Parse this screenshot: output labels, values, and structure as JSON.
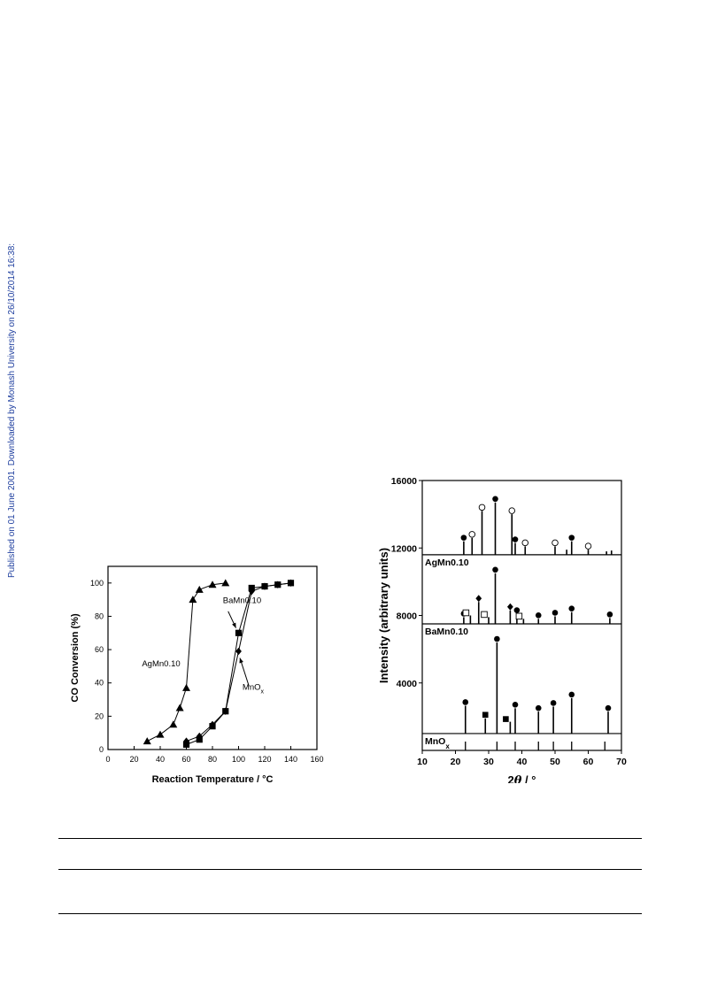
{
  "sidenote": "Published on 01 June 2001. Downloaded by Monash University on 26/10/2014 16:38:37.",
  "sidenote_color": "#1f3f9f",
  "chart_data": [
    {
      "type": "line",
      "xlabel": "Reaction Temperature / °C",
      "ylabel": "CO Conversion (%)",
      "xlim": [
        0,
        160
      ],
      "ylim": [
        0,
        110
      ],
      "xticks": [
        "0",
        "20",
        "40",
        "60",
        "80",
        "100",
        "120",
        "140",
        "160"
      ],
      "yticks": [
        "0",
        "20",
        "40",
        "60",
        "80",
        "100"
      ],
      "grid": false,
      "series": [
        {
          "name": "AgMn0.10",
          "marker": "triangle",
          "x": [
            30,
            40,
            50,
            55,
            60,
            65,
            70,
            80,
            90
          ],
          "y": [
            5,
            9,
            15,
            25,
            37,
            90,
            96,
            99,
            100
          ]
        },
        {
          "name": "BaMn0.10",
          "marker": "square",
          "x": [
            60,
            70,
            80,
            90,
            100,
            110,
            120,
            130,
            140
          ],
          "y": [
            3,
            6,
            14,
            23,
            70,
            97,
            98,
            99,
            100
          ]
        },
        {
          "name": "MnOx",
          "marker": "diamond",
          "x": [
            60,
            70,
            80,
            90,
            100,
            110,
            120,
            130,
            140
          ],
          "y": [
            5,
            8,
            15,
            23,
            59,
            95,
            98,
            99,
            100
          ]
        }
      ],
      "annotations": [
        {
          "text": "AgMn0.10"
        },
        {
          "text": "BaMn0.10"
        },
        {
          "text": "MnO",
          "sub": "x"
        }
      ]
    },
    {
      "type": "bar",
      "subtype": "stacked-stick-diffraction",
      "xlabel_pre": "2",
      "xlabel_theta": "θ",
      "xlabel_post": " / °",
      "ylabel": "Intensity (arbitrary units)",
      "xlim": [
        10,
        70
      ],
      "ylim": [
        0,
        16000
      ],
      "xticks": [
        "10",
        "20",
        "30",
        "40",
        "50",
        "60",
        "70"
      ],
      "yticks": [
        {
          "v": 4000,
          "label": "4000"
        },
        {
          "v": 8000,
          "label": "8000"
        },
        {
          "v": 12000,
          "label": "12000"
        },
        {
          "v": 16000,
          "label": "16000"
        }
      ],
      "panels": [
        {
          "label": "MnO",
          "sub": "x",
          "base": 0,
          "top": 0,
          "sticks": [
            {
              "x": 23.0,
              "h": 0
            },
            {
              "x": 32.5,
              "h": 0
            },
            {
              "x": 38.0,
              "h": 0
            },
            {
              "x": 45.0,
              "h": 0
            },
            {
              "x": 49.5,
              "h": 0
            },
            {
              "x": 55.0,
              "h": 0
            },
            {
              "x": 65.0,
              "h": 0
            }
          ]
        },
        {
          "label": "",
          "base": 1000,
          "top": 7500,
          "sticks": [
            {
              "x": 23.0,
              "h": 1650,
              "m": "filled-circle"
            },
            {
              "x": 32.5,
              "h": 5400,
              "m": "filled-circle"
            },
            {
              "x": 38.0,
              "h": 1500,
              "m": "filled-circle"
            },
            {
              "x": 45.0,
              "h": 1300,
              "m": "filled-circle"
            },
            {
              "x": 49.5,
              "h": 1600,
              "m": "filled-circle"
            },
            {
              "x": 55.0,
              "h": 2100,
              "m": "filled-circle"
            },
            {
              "x": 66.0,
              "h": 1300,
              "m": "filled-circle"
            },
            {
              "x": 29.0,
              "h": 900,
              "m": "filled-square"
            },
            {
              "x": 36.5,
              "h": 700,
              "m": "filled-square"
            }
          ]
        },
        {
          "label": "BaMn0.10",
          "base": 7500,
          "top": 11600,
          "sticks": [
            {
              "x": 22.5,
              "h": 400,
              "m": "filled-circle"
            },
            {
              "x": 32.0,
              "h": 3000,
              "m": "filled-circle"
            },
            {
              "x": 38.5,
              "h": 600,
              "m": "filled-circle"
            },
            {
              "x": 45.0,
              "h": 300,
              "m": "filled-circle"
            },
            {
              "x": 50.0,
              "h": 450,
              "m": "filled-circle"
            },
            {
              "x": 55.0,
              "h": 700,
              "m": "filled-circle"
            },
            {
              "x": 66.5,
              "h": 350,
              "m": "filled-circle"
            },
            {
              "x": 27.0,
              "h": 1300,
              "m": "filled-diamond"
            },
            {
              "x": 36.5,
              "h": 800,
              "m": "filled-diamond"
            },
            {
              "x": 24.5,
              "h": 500,
              "m": "open-square"
            },
            {
              "x": 30.0,
              "h": 400,
              "m": "open-square"
            },
            {
              "x": 40.5,
              "h": 300,
              "m": "open-square"
            }
          ]
        },
        {
          "label": "AgMn0.10",
          "base": 11600,
          "top": 16000,
          "sticks": [
            {
              "x": 22.5,
              "h": 800,
              "m": "filled-circle"
            },
            {
              "x": 32.0,
              "h": 3100,
              "m": "filled-circle"
            },
            {
              "x": 38.0,
              "h": 700,
              "m": "filled-circle"
            },
            {
              "x": 55.0,
              "h": 800,
              "m": "filled-circle"
            },
            {
              "x": 25.0,
              "h": 1000,
              "m": "open-circle"
            },
            {
              "x": 28.0,
              "h": 2600,
              "m": "open-circle"
            },
            {
              "x": 37.0,
              "h": 2400,
              "m": "open-circle"
            },
            {
              "x": 41.0,
              "h": 500,
              "m": "open-circle"
            },
            {
              "x": 50.0,
              "h": 500,
              "m": "open-circle"
            },
            {
              "x": 60.0,
              "h": 300,
              "m": "open-circle"
            },
            {
              "x": 53.5,
              "h": 300
            },
            {
              "x": 65.5,
              "h": 200
            },
            {
              "x": 67.0,
              "h": 250
            }
          ]
        }
      ]
    }
  ]
}
